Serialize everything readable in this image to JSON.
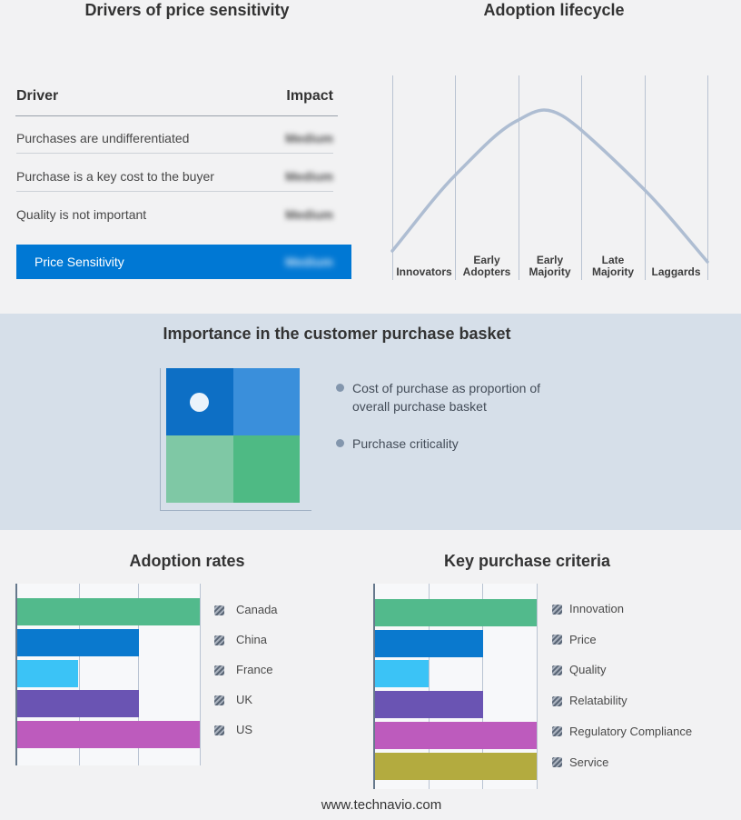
{
  "page": {
    "footer_url": "www.technavio.com",
    "colors": {
      "background": "#f2f2f3",
      "band_background": "#d6dfe9",
      "accent_blue": "#0078d4",
      "curve": "#aebdd2",
      "gridline": "#b9c3d2",
      "axis": "#66788c"
    }
  },
  "drivers_table": {
    "title": "Drivers of price sensitivity",
    "col_driver": "Driver",
    "col_impact": "Impact",
    "rows": [
      {
        "driver": "Purchases are undifferentiated",
        "impact": "Medium"
      },
      {
        "driver": "Purchase is a key cost to the buyer",
        "impact": "Medium"
      },
      {
        "driver": "Quality is not important",
        "impact": "Medium"
      }
    ],
    "highlight_row": {
      "driver": "Price Sensitivity",
      "impact": "Medium"
    }
  },
  "chart_data": [
    {
      "id": "lifecycle",
      "type": "line",
      "title": "Adoption lifecycle",
      "x_segments": [
        "Innovators",
        "Early Adopters",
        "Early Majority",
        "Late Majority",
        "Laggards"
      ],
      "shape": "bell curve rising from Innovators, peaking over Early Majority, falling to Laggards",
      "grid": "vertical segment dividers only, no y-axis"
    },
    {
      "id": "basket",
      "type": "quadrant",
      "title": "Importance in the customer purchase basket",
      "quadrant_colors": [
        "#0d6fc5",
        "#3a8fdb",
        "#7fc8a5",
        "#4eba84"
      ],
      "marker": "white dot in upper-left quadrant",
      "bullets": [
        "Cost of purchase as proportion of overall purchase basket",
        "Purchase criticality"
      ]
    },
    {
      "id": "adoption_rates",
      "type": "bar",
      "title": "Adoption rates",
      "orientation": "horizontal",
      "categories": [
        "Canada",
        "China",
        "France",
        "UK",
        "US"
      ],
      "values": [
        3,
        2,
        1,
        2,
        3
      ],
      "xlim": [
        0,
        3
      ],
      "grid": "vertical gridlines at 1, 2, 3 (unlabeled)",
      "colors": [
        "#52ba8c",
        "#0a79ce",
        "#3bc3f6",
        "#6a54b3",
        "#bd5bbd"
      ],
      "legend_position": "right"
    },
    {
      "id": "key_purchase_criteria",
      "type": "bar",
      "title": "Key purchase criteria",
      "orientation": "horizontal",
      "categories": [
        "Innovation",
        "Price",
        "Quality",
        "Relatability",
        "Regulatory Compliance",
        "Service"
      ],
      "values": [
        3,
        2,
        1,
        2,
        3,
        3
      ],
      "xlim": [
        0,
        3
      ],
      "grid": "vertical gridlines at 1, 2, 3 (unlabeled)",
      "colors": [
        "#52ba8c",
        "#0a79ce",
        "#3bc3f6",
        "#6a54b3",
        "#bd5bbd",
        "#b3ab3f"
      ],
      "legend_position": "right"
    }
  ]
}
